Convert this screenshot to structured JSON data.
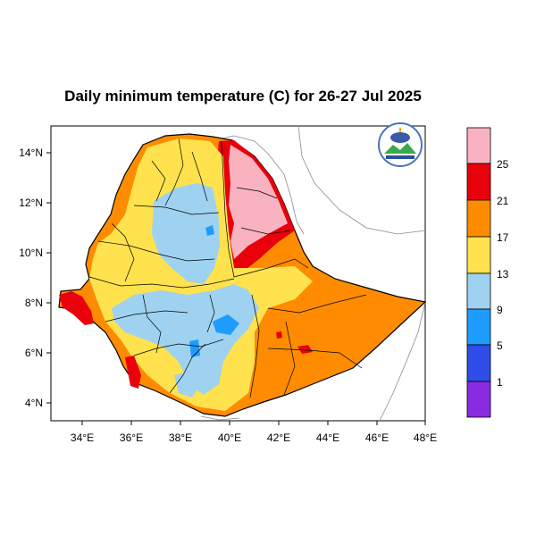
{
  "title": "Daily minimum temperature (C) for 26-27 Jul 2025",
  "axes": {
    "x_ticks": [
      "34°E",
      "36°E",
      "38°E",
      "40°E",
      "42°E",
      "44°E",
      "46°E",
      "48°E"
    ],
    "y_ticks": [
      "14°N",
      "12°N",
      "10°N",
      "8°N",
      "6°N",
      "4°N"
    ]
  },
  "colorbar": {
    "labels": [
      "25",
      "21",
      "17",
      "13",
      "9",
      "5",
      "1"
    ],
    "colors": [
      "#f9b3c0",
      "#e8000b",
      "#ff8c00",
      "#ffe24d",
      "#9fd2f0",
      "#1e9cff",
      "#2f4de8",
      "#8a2be2"
    ]
  },
  "map_colors": {
    "pink": "#f9b3c0",
    "red": "#e8000b",
    "orange": "#ff8c00",
    "yellow": "#ffe24d",
    "lightblue": "#9fd2f0",
    "blue": "#1e9cff"
  },
  "logo": {
    "icon": "ethiopian-meteorology-institute-logo"
  }
}
